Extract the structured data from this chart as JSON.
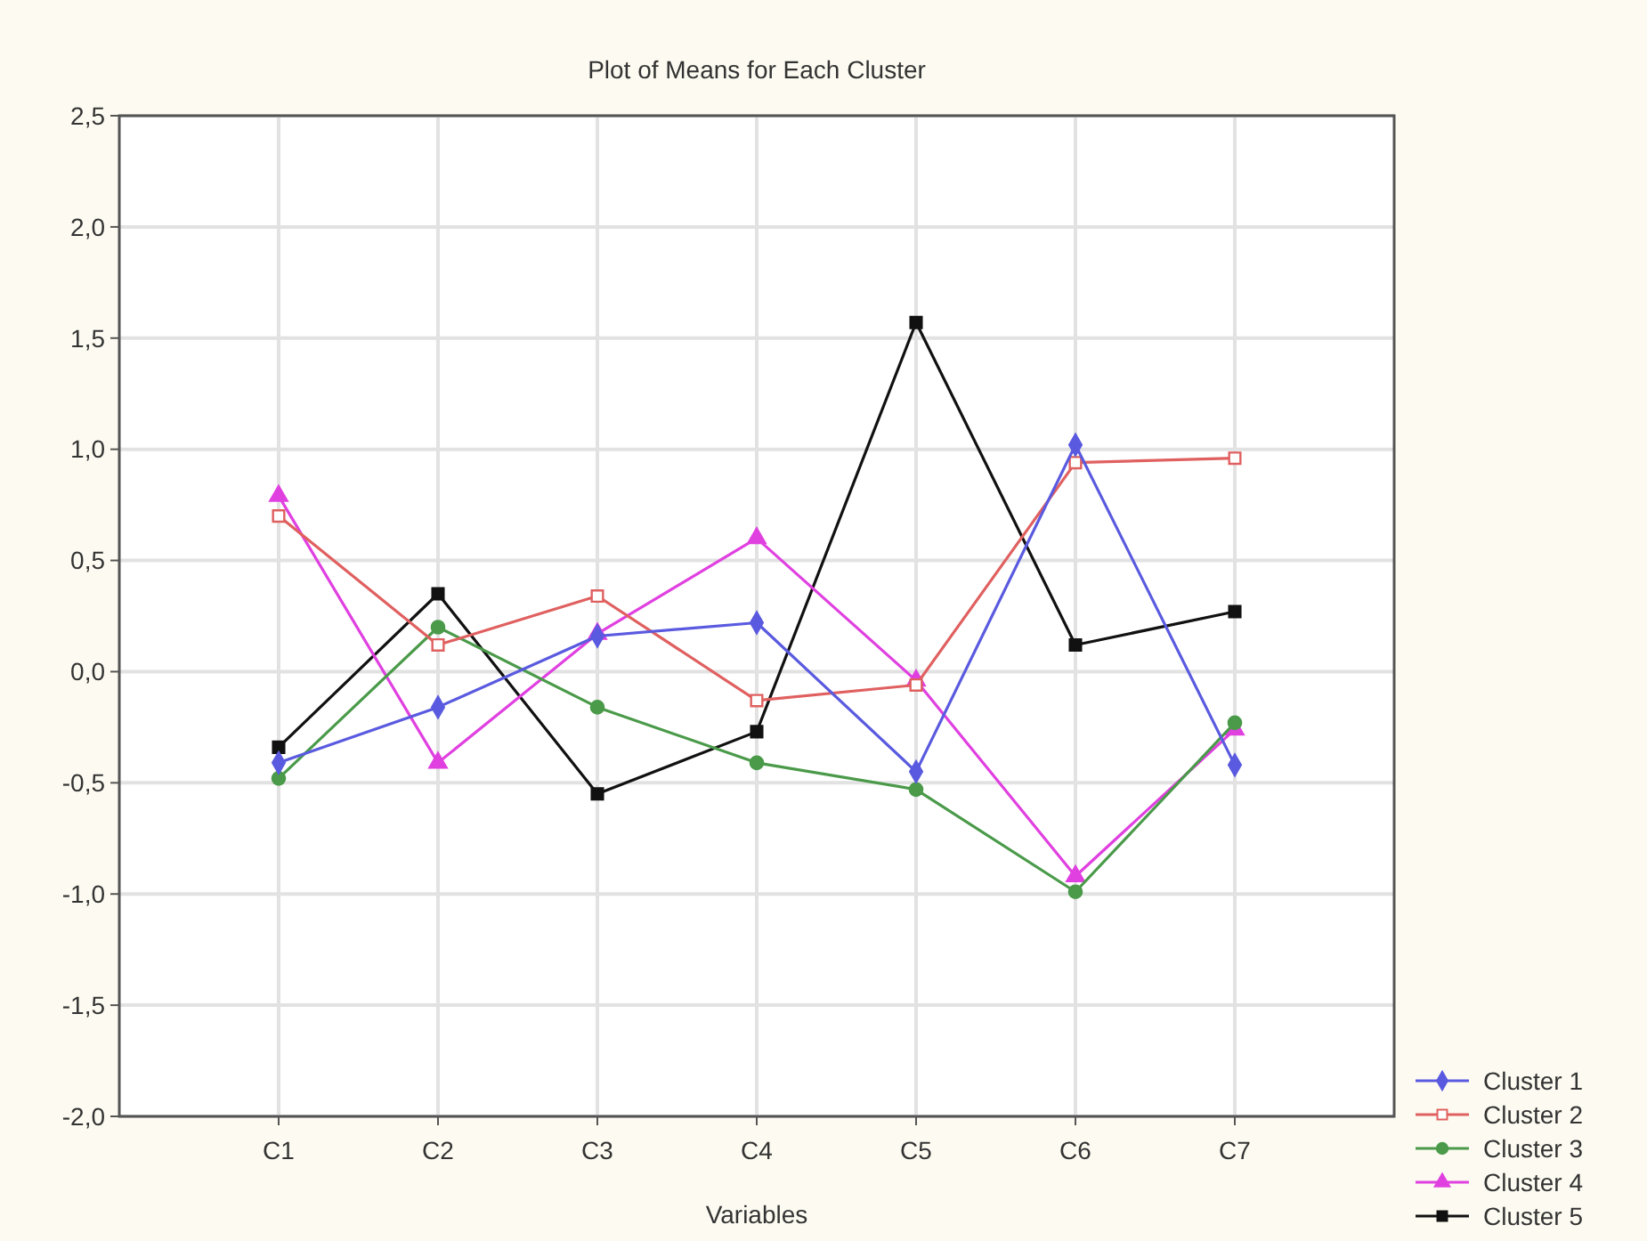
{
  "chart_data": {
    "type": "line",
    "title": "Plot of Means for Each Cluster",
    "xlabel": "Variables",
    "categories": [
      "C1",
      "C2",
      "C3",
      "C4",
      "C5",
      "C6",
      "C7"
    ],
    "series": [
      {
        "name": "Cluster 1",
        "color": "#5a5ae0",
        "marker": "diamond",
        "values": [
          -0.41,
          -0.16,
          0.16,
          0.22,
          -0.45,
          1.02,
          -0.42
        ]
      },
      {
        "name": "Cluster 2",
        "color": "#e06060",
        "marker": "square",
        "values": [
          0.7,
          0.12,
          0.34,
          -0.13,
          -0.06,
          0.94,
          0.96
        ]
      },
      {
        "name": "Cluster 3",
        "color": "#4a9a4a",
        "marker": "circle",
        "values": [
          -0.48,
          0.2,
          -0.16,
          -0.41,
          -0.53,
          -0.99,
          -0.23
        ]
      },
      {
        "name": "Cluster 4",
        "color": "#e040e0",
        "marker": "triangle",
        "values": [
          0.79,
          -0.41,
          0.17,
          0.6,
          -0.04,
          -0.92,
          -0.26
        ]
      },
      {
        "name": "Cluster 5",
        "color": "#111111",
        "marker": "square",
        "values": [
          -0.34,
          0.35,
          -0.55,
          -0.27,
          1.57,
          0.12,
          0.27
        ]
      }
    ],
    "ylim": [
      -2,
      2.5
    ],
    "yticks": [
      {
        "value": -2,
        "label": "-2,0"
      },
      {
        "value": -1.5,
        "label": "-1,5"
      },
      {
        "value": -1,
        "label": "-1,0"
      },
      {
        "value": -0.5,
        "label": "-0,5"
      },
      {
        "value": 0,
        "label": "0,0"
      },
      {
        "value": 0.5,
        "label": "0,5"
      },
      {
        "value": 1,
        "label": "1,0"
      },
      {
        "value": 1.5,
        "label": "1,5"
      },
      {
        "value": 2,
        "label": "2,0"
      },
      {
        "value": 2.5,
        "label": "2,5"
      }
    ],
    "grid": true,
    "legend": "bottom right",
    "line_style": "solid"
  }
}
